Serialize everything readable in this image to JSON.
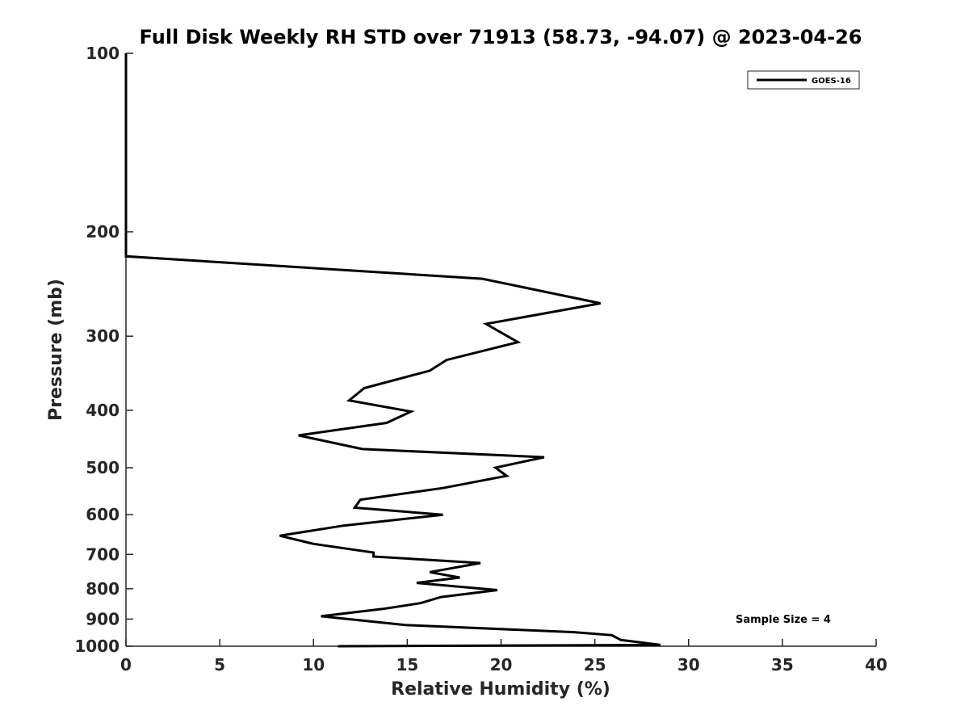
{
  "chart_data": {
    "type": "line",
    "title": "Full Disk Weekly RH STD over 71913 (58.73, -94.07) @ 2023-04-26",
    "xlabel": "Relative Humidity (%)",
    "ylabel": "Pressure (mb)",
    "xlim": [
      0,
      40
    ],
    "ylim": [
      100,
      1000
    ],
    "y_scale": "log",
    "y_reversed": true,
    "x_ticks": [
      "0",
      "5",
      "10",
      "15",
      "20",
      "25",
      "30",
      "35",
      "40"
    ],
    "y_ticks": [
      "100",
      "200",
      "300",
      "400",
      "500",
      "600",
      "700",
      "800",
      "900",
      "1000"
    ],
    "grid": false,
    "legend_position": "top-right",
    "annotation": "Sample Size = 4",
    "series": [
      {
        "name": "GOES-16",
        "color": "#000000",
        "points": [
          [
            0,
            100
          ],
          [
            0,
            103
          ],
          [
            0,
            110
          ],
          [
            0,
            120
          ],
          [
            0,
            130
          ],
          [
            0,
            140
          ],
          [
            0,
            150
          ],
          [
            0,
            160
          ],
          [
            0,
            170
          ],
          [
            0,
            180
          ],
          [
            0,
            190
          ],
          [
            0,
            200
          ],
          [
            0,
            210
          ],
          [
            0,
            220
          ],
          [
            19,
            240
          ],
          [
            25.3,
            264
          ],
          [
            19.2,
            286
          ],
          [
            20.9,
            307
          ],
          [
            17.1,
            329
          ],
          [
            16.2,
            343
          ],
          [
            12.7,
            367
          ],
          [
            11.9,
            385
          ],
          [
            15.2,
            402
          ],
          [
            13.9,
            420
          ],
          [
            9.2,
            441
          ],
          [
            12.6,
            465
          ],
          [
            22.3,
            480
          ],
          [
            19.7,
            500
          ],
          [
            20.3,
            516
          ],
          [
            16.9,
            541
          ],
          [
            12.5,
            566
          ],
          [
            12.2,
            584
          ],
          [
            16.9,
            600
          ],
          [
            11.6,
            626
          ],
          [
            8.2,
            651
          ],
          [
            10,
            672
          ],
          [
            13.2,
            695
          ],
          [
            13.2,
            706
          ],
          [
            18.9,
            724
          ],
          [
            16.2,
            750
          ],
          [
            17.8,
            766
          ],
          [
            15.5,
            782
          ],
          [
            19.8,
            804
          ],
          [
            16.8,
            826
          ],
          [
            15.7,
            846
          ],
          [
            13.7,
            865
          ],
          [
            10.4,
            890
          ],
          [
            14.9,
            921
          ],
          [
            23.9,
            947
          ],
          [
            25.9,
            958
          ],
          [
            26.4,
            976
          ],
          [
            28.5,
            995
          ],
          [
            11.3,
            1000
          ]
        ]
      }
    ]
  }
}
